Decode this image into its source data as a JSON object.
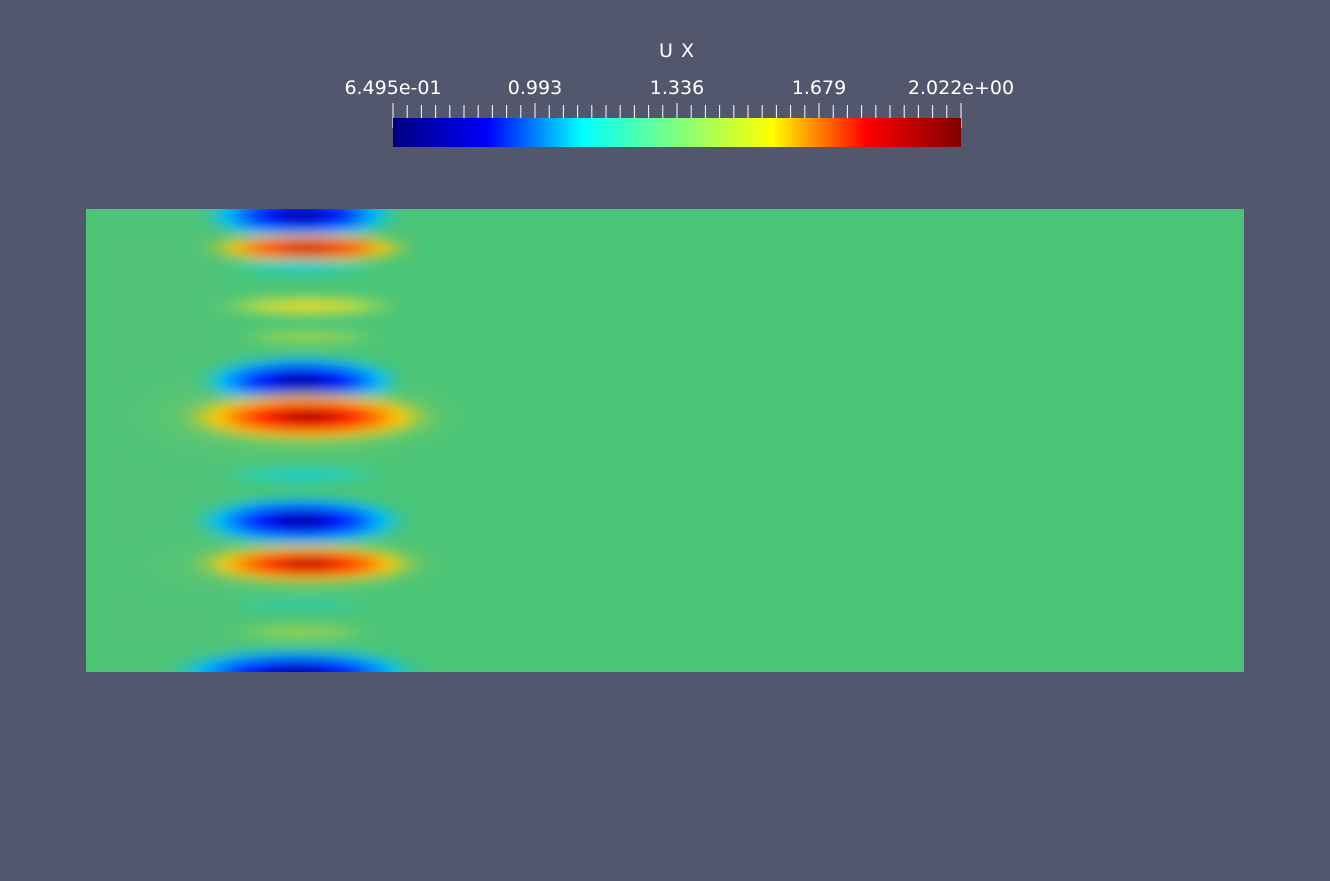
{
  "colorbar": {
    "title": "U X",
    "min_label": "6.495e-01",
    "max_label": "2.022e+00",
    "tick_labels": [
      "0.993",
      "1.336",
      "1.679"
    ],
    "range": [
      0.6495,
      2.022
    ],
    "colormap": [
      "#00007f",
      "#0000ff",
      "#00ffff",
      "#7fff7f",
      "#ffff00",
      "#ff0000",
      "#7f0000"
    ]
  },
  "field": {
    "background_color": "#4ac577",
    "background_value": 1.25
  },
  "colors": {
    "background": "#52576e",
    "text": "#ffffff"
  }
}
